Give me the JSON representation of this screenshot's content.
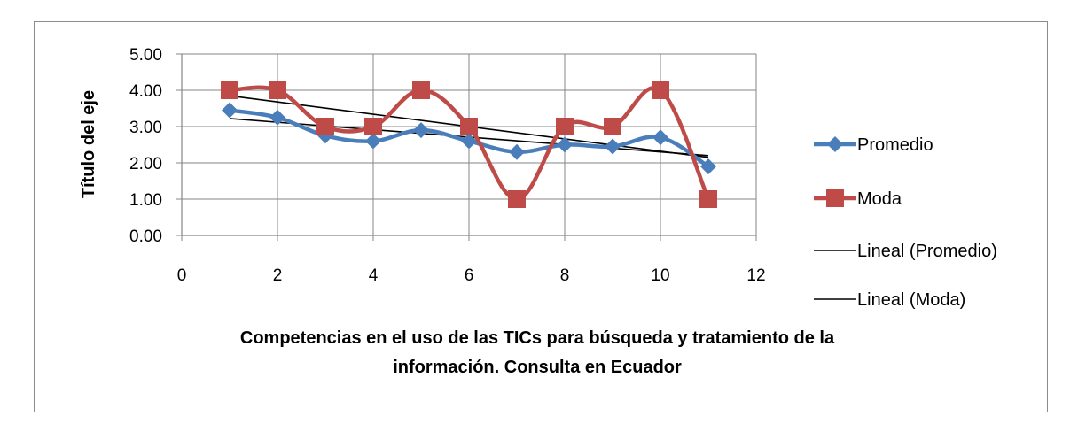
{
  "chart_data": {
    "type": "line",
    "ylabel": "Título del eje",
    "xlabel_lines": [
      "Competencias en el uso de las TICs para búsqueda y tratamiento de la",
      "información. Consulta en Ecuador"
    ],
    "xlim": [
      0,
      12
    ],
    "ylim": [
      0,
      5
    ],
    "x_ticks": [
      "0",
      "2",
      "4",
      "6",
      "8",
      "10",
      "12"
    ],
    "y_ticks": [
      "0.00",
      "1.00",
      "2.00",
      "3.00",
      "4.00",
      "5.00"
    ],
    "grid": true,
    "legend_position": "right",
    "x": [
      1,
      2,
      3,
      4,
      5,
      6,
      7,
      8,
      9,
      10,
      11
    ],
    "series": [
      {
        "name": "Promedio",
        "color": "#4a7ebb",
        "marker": "diamond",
        "values": [
          3.45,
          3.25,
          2.75,
          2.6,
          2.9,
          2.6,
          2.3,
          2.5,
          2.45,
          2.7,
          1.9
        ]
      },
      {
        "name": "Moda",
        "color": "#be4b48",
        "marker": "square",
        "values": [
          4,
          4,
          3,
          3,
          4,
          3,
          1,
          3,
          3,
          4,
          1
        ]
      }
    ],
    "trendlines": [
      {
        "name": "Lineal (Promedio)",
        "color": "#000000",
        "start": [
          1,
          3.22
        ],
        "end": [
          11,
          2.2
        ]
      },
      {
        "name": "Lineal (Moda)",
        "color": "#000000",
        "start": [
          1,
          3.85
        ],
        "end": [
          11,
          2.15
        ]
      }
    ]
  }
}
